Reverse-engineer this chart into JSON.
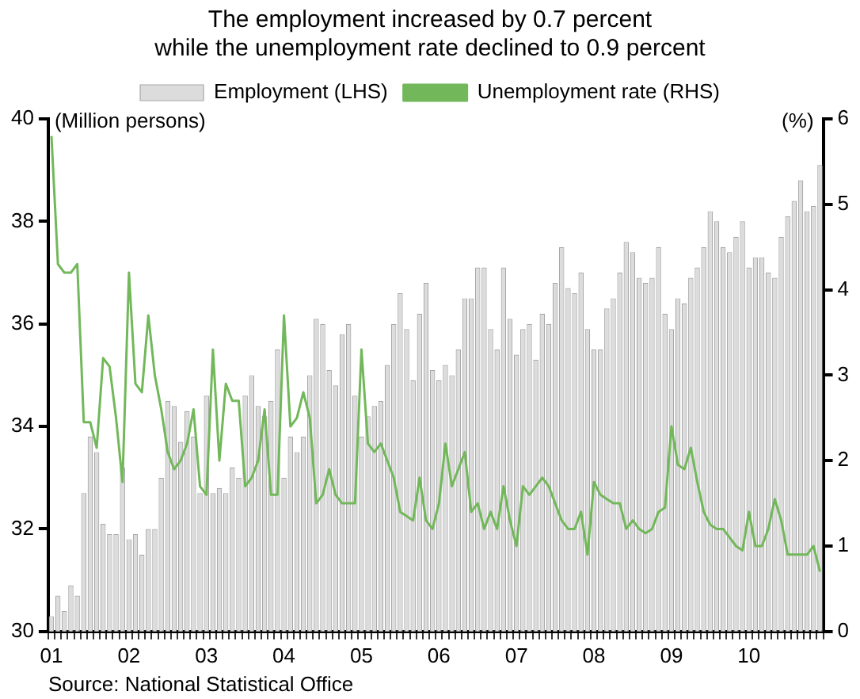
{
  "chart_data": {
    "type": "bar",
    "title": "The employment increased by 0.7 percent\nwhile the unemployment rate declined to 0.9 percent",
    "ylabel": "(Million persons)",
    "y2label": "(%)",
    "categories": [
      "01",
      null,
      null,
      null,
      null,
      null,
      null,
      null,
      null,
      null,
      null,
      null,
      "02",
      null,
      null,
      null,
      null,
      null,
      null,
      null,
      null,
      null,
      null,
      null,
      "03",
      null,
      null,
      null,
      null,
      null,
      null,
      null,
      null,
      null,
      null,
      null,
      "04",
      null,
      null,
      null,
      null,
      null,
      null,
      null,
      null,
      null,
      null,
      null,
      "05",
      null,
      null,
      null,
      null,
      null,
      null,
      null,
      null,
      null,
      null,
      null,
      "06",
      null,
      null,
      null,
      null,
      null,
      null,
      null,
      null,
      null,
      null,
      null,
      "07",
      null,
      null,
      null,
      null,
      null,
      null,
      null,
      null,
      null,
      null,
      null,
      "08",
      null,
      null,
      null,
      null,
      null,
      null,
      null,
      null,
      null,
      null,
      null,
      "09",
      null,
      null,
      null,
      null,
      null,
      null,
      null,
      null,
      null,
      null,
      null,
      "10",
      null,
      null,
      null,
      null,
      null,
      null,
      null,
      null,
      null,
      null,
      null
    ],
    "series": [
      {
        "name": "Employment (LHS)",
        "color": "#dcdcdc",
        "values": [
          30.3,
          30.7,
          30.4,
          30.9,
          30.7,
          32.7,
          33.8,
          33.5,
          32.1,
          31.9,
          31.9,
          33.2,
          31.8,
          31.9,
          31.5,
          32.0,
          32.0,
          33.0,
          34.5,
          34.4,
          33.7,
          34.3,
          33.8,
          32.7,
          34.6,
          32.7,
          32.8,
          32.7,
          33.2,
          33.0,
          34.6,
          35.0,
          34.4,
          34.2,
          34.5,
          35.5,
          33.0,
          33.8,
          33.5,
          33.8,
          35.0,
          36.1,
          36.0,
          35.1,
          34.8,
          35.8,
          36.0,
          34.6,
          33.8,
          34.2,
          34.4,
          34.5,
          35.2,
          36.0,
          36.6,
          35.9,
          34.9,
          36.2,
          36.8,
          35.1,
          34.9,
          35.2,
          35.0,
          35.5,
          36.5,
          36.5,
          37.1,
          37.1,
          35.9,
          35.5,
          37.1,
          36.1,
          35.4,
          35.9,
          36.0,
          35.3,
          36.2,
          36.0,
          36.8,
          37.5,
          36.7,
          36.6,
          37.0,
          35.9,
          35.5,
          35.5,
          36.3,
          36.5,
          37.0,
          37.6,
          37.4,
          36.9,
          36.8,
          36.9,
          37.5,
          36.2,
          35.9,
          36.5,
          36.4,
          36.9,
          37.1,
          37.5,
          38.2,
          38.0,
          37.5,
          37.4,
          37.7,
          38.0,
          37.1,
          37.3,
          37.3,
          37.0,
          36.9,
          37.7,
          38.1,
          38.4,
          38.8,
          38.2,
          38.3,
          39.1
        ]
      },
      {
        "name": "Unemployment rate (RHS)",
        "type": "line",
        "axis": "y2",
        "color": "#72b85a",
        "values": [
          5.8,
          4.3,
          4.2,
          4.2,
          4.3,
          2.45,
          2.45,
          2.15,
          3.2,
          3.1,
          2.5,
          1.75,
          4.2,
          2.9,
          2.8,
          3.7,
          3.0,
          2.6,
          2.1,
          1.9,
          2.0,
          2.2,
          2.6,
          1.7,
          1.6,
          3.3,
          2.0,
          2.9,
          2.7,
          2.7,
          1.7,
          1.8,
          2.0,
          2.6,
          1.6,
          1.6,
          3.7,
          2.4,
          2.5,
          2.8,
          2.5,
          1.5,
          1.6,
          1.9,
          1.6,
          1.5,
          1.5,
          1.5,
          3.3,
          2.2,
          2.1,
          2.2,
          2.0,
          1.8,
          1.4,
          1.35,
          1.3,
          1.8,
          1.3,
          1.2,
          1.5,
          2.2,
          1.7,
          1.9,
          2.1,
          1.4,
          1.5,
          1.2,
          1.4,
          1.2,
          1.7,
          1.3,
          1.0,
          1.7,
          1.6,
          1.7,
          1.8,
          1.7,
          1.5,
          1.3,
          1.2,
          1.2,
          1.4,
          0.9,
          1.75,
          1.6,
          1.55,
          1.5,
          1.5,
          1.2,
          1.3,
          1.2,
          1.15,
          1.2,
          1.4,
          1.45,
          2.4,
          1.95,
          1.9,
          2.15,
          1.75,
          1.4,
          1.25,
          1.2,
          1.2,
          1.1,
          1.0,
          0.95,
          1.4,
          1.0,
          1.0,
          1.2,
          1.55,
          1.3,
          0.9,
          0.9,
          0.9,
          0.9,
          1.0,
          0.7
        ]
      }
    ],
    "ylim": [
      30,
      40
    ],
    "yticks": [
      30,
      32,
      34,
      36,
      38,
      40
    ],
    "y2lim": [
      0,
      6
    ],
    "y2ticks": [
      0,
      1,
      2,
      3,
      4,
      5,
      6
    ],
    "grid": false,
    "legend": "top",
    "marker": "none",
    "annotations": [
      "Source: National Statistical Office"
    ]
  }
}
